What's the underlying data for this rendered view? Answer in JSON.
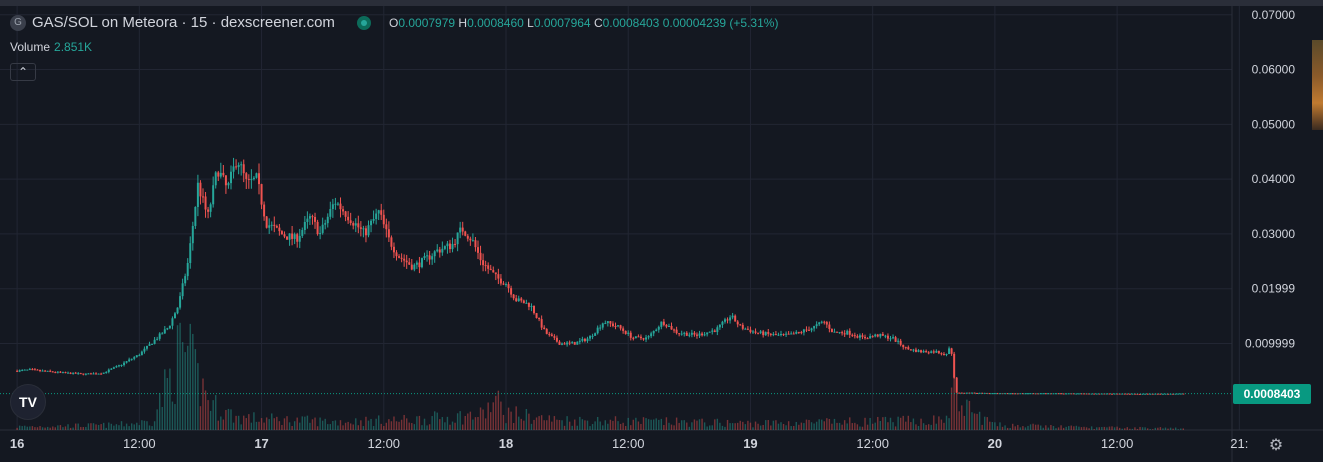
{
  "header": {
    "symbol_letter": "G",
    "title": "GAS/SOL on Meteora · 15 · dexscreener.com",
    "ohlc": {
      "o_label": "O",
      "o_value": "0.0007979",
      "h_label": "H",
      "h_value": "0.0008460",
      "l_label": "L",
      "l_value": "0.0007964",
      "c_label": "C",
      "c_value": "0.0008403",
      "change": "0.00004239 (+5.31%)"
    },
    "volume_label": "Volume",
    "volume_value": "2.851K",
    "collapse_icon": "chevron-up-icon"
  },
  "logo_text": "TV",
  "last_price_label": "0.0008403",
  "settings_icon": "gear-icon",
  "colors": {
    "background": "#141821",
    "grid": "#222633",
    "up": "#26a69a",
    "down": "#ef5350",
    "price_tag": "#089981",
    "axis_text": "#d1d4dc"
  },
  "chart_data": {
    "type": "candlestick",
    "y_tick_labels": [
      "0.07000",
      "0.06000",
      "0.05000",
      "0.04000",
      "0.03000",
      "0.01999",
      "0.009999"
    ],
    "y_tick_values": [
      0.07,
      0.06,
      0.05,
      0.04,
      0.03,
      0.01999,
      0.009999
    ],
    "ylim": [
      -0.0058,
      0.0716
    ],
    "x_tick_labels": [
      "16",
      "12:00",
      "17",
      "12:00",
      "18",
      "12:00",
      "19",
      "12:00",
      "20",
      "12:00",
      "21:"
    ],
    "x_tick_bold": [
      true,
      false,
      true,
      false,
      true,
      false,
      true,
      false,
      true,
      false,
      false
    ],
    "x_tick_times": [
      0,
      0.5,
      1,
      1.5,
      2,
      2.5,
      3,
      3.5,
      4,
      4.5,
      5
    ],
    "x_range_days": [
      -0.07,
      4.97
    ],
    "last_price": 0.0008403,
    "grid": true,
    "price_path": [
      [
        0.0,
        0.005
      ],
      [
        0.05,
        0.0052
      ],
      [
        0.12,
        0.0049
      ],
      [
        0.2,
        0.0046
      ],
      [
        0.28,
        0.0044
      ],
      [
        0.35,
        0.0046
      ],
      [
        0.42,
        0.006
      ],
      [
        0.5,
        0.008
      ],
      [
        0.56,
        0.0105
      ],
      [
        0.62,
        0.013
      ],
      [
        0.66,
        0.017
      ],
      [
        0.7,
        0.025
      ],
      [
        0.74,
        0.039
      ],
      [
        0.78,
        0.033
      ],
      [
        0.82,
        0.042
      ],
      [
        0.86,
        0.038
      ],
      [
        0.9,
        0.044
      ],
      [
        0.94,
        0.039
      ],
      [
        0.98,
        0.04
      ],
      [
        1.02,
        0.032
      ],
      [
        1.08,
        0.03
      ],
      [
        1.14,
        0.029
      ],
      [
        1.2,
        0.033
      ],
      [
        1.24,
        0.03
      ],
      [
        1.3,
        0.036
      ],
      [
        1.36,
        0.033
      ],
      [
        1.42,
        0.03
      ],
      [
        1.48,
        0.034
      ],
      [
        1.52,
        0.029
      ],
      [
        1.56,
        0.026
      ],
      [
        1.62,
        0.024
      ],
      [
        1.66,
        0.025
      ],
      [
        1.72,
        0.027
      ],
      [
        1.78,
        0.028
      ],
      [
        1.82,
        0.031
      ],
      [
        1.86,
        0.029
      ],
      [
        1.9,
        0.025
      ],
      [
        1.96,
        0.022
      ],
      [
        2.0,
        0.021
      ],
      [
        2.04,
        0.018
      ],
      [
        2.1,
        0.017
      ],
      [
        2.16,
        0.012
      ],
      [
        2.22,
        0.01
      ],
      [
        2.28,
        0.01
      ],
      [
        2.34,
        0.011
      ],
      [
        2.4,
        0.014
      ],
      [
        2.46,
        0.013
      ],
      [
        2.52,
        0.011
      ],
      [
        2.58,
        0.011
      ],
      [
        2.64,
        0.014
      ],
      [
        2.7,
        0.012
      ],
      [
        2.78,
        0.0115
      ],
      [
        2.86,
        0.0125
      ],
      [
        2.92,
        0.015
      ],
      [
        2.96,
        0.013
      ],
      [
        3.02,
        0.012
      ],
      [
        3.1,
        0.0115
      ],
      [
        3.16,
        0.0115
      ],
      [
        3.2,
        0.012
      ],
      [
        3.26,
        0.013
      ],
      [
        3.3,
        0.014
      ],
      [
        3.34,
        0.012
      ],
      [
        3.4,
        0.012
      ],
      [
        3.46,
        0.011
      ],
      [
        3.52,
        0.0115
      ],
      [
        3.58,
        0.011
      ],
      [
        3.64,
        0.009
      ],
      [
        3.7,
        0.0085
      ],
      [
        3.76,
        0.0085
      ],
      [
        3.8,
        0.008
      ],
      [
        3.82,
        0.0095
      ],
      [
        3.84,
        0.001
      ],
      [
        3.9,
        0.001
      ],
      [
        4.0,
        0.0009
      ],
      [
        4.2,
        0.0009
      ],
      [
        4.4,
        0.00085
      ],
      [
        4.6,
        0.0008
      ],
      [
        4.78,
        0.00084
      ]
    ],
    "volume_profile": [
      [
        0.0,
        0.04
      ],
      [
        0.4,
        0.06
      ],
      [
        0.55,
        0.1
      ],
      [
        0.62,
        0.6
      ],
      [
        0.68,
        1.0
      ],
      [
        0.74,
        0.6
      ],
      [
        0.8,
        0.3
      ],
      [
        0.9,
        0.15
      ],
      [
        1.1,
        0.12
      ],
      [
        1.3,
        0.1
      ],
      [
        1.6,
        0.12
      ],
      [
        1.9,
        0.18
      ],
      [
        1.96,
        0.35
      ],
      [
        2.0,
        0.2
      ],
      [
        2.2,
        0.12
      ],
      [
        2.6,
        0.1
      ],
      [
        3.0,
        0.08
      ],
      [
        3.5,
        0.1
      ],
      [
        3.8,
        0.12
      ],
      [
        3.84,
        0.6
      ],
      [
        3.86,
        0.3
      ],
      [
        4.0,
        0.06
      ],
      [
        4.4,
        0.03
      ],
      [
        4.78,
        0.02
      ]
    ]
  }
}
